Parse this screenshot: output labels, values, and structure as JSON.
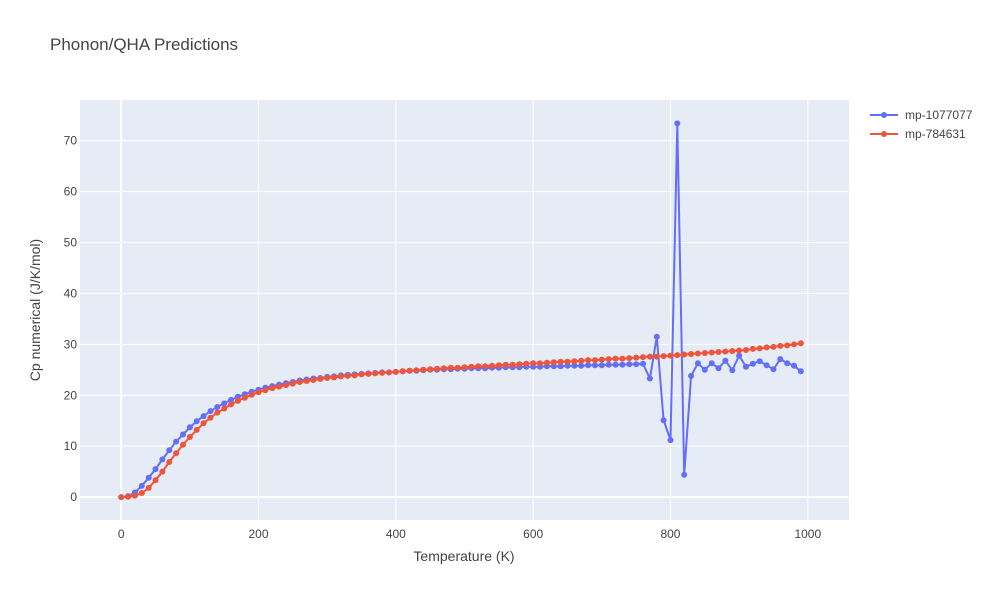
{
  "chart_data": {
    "type": "line",
    "title": "Phonon/QHA Predictions",
    "xlabel": "Temperature (K)",
    "ylabel": "Cp numerical (J/K/mol)",
    "xlim": [
      -60,
      1060
    ],
    "ylim": [
      -4.5,
      78
    ],
    "x_ticks": [
      0,
      200,
      400,
      600,
      800,
      1000
    ],
    "y_ticks": [
      0,
      10,
      20,
      30,
      40,
      50,
      60,
      70
    ],
    "grid": true,
    "legend_position": "top-right",
    "x": [
      0,
      10,
      20,
      30,
      40,
      50,
      60,
      70,
      80,
      90,
      100,
      110,
      120,
      130,
      140,
      150,
      160,
      170,
      180,
      190,
      200,
      210,
      220,
      230,
      240,
      250,
      260,
      270,
      280,
      290,
      300,
      310,
      320,
      330,
      340,
      350,
      360,
      370,
      380,
      390,
      400,
      410,
      420,
      430,
      440,
      450,
      460,
      470,
      480,
      490,
      500,
      510,
      520,
      530,
      540,
      550,
      560,
      570,
      580,
      590,
      600,
      610,
      620,
      630,
      640,
      650,
      660,
      670,
      680,
      690,
      700,
      710,
      720,
      730,
      740,
      750,
      760,
      770,
      780,
      790,
      800,
      810,
      820,
      830,
      840,
      850,
      860,
      870,
      880,
      890,
      900,
      910,
      920,
      930,
      940,
      950,
      960,
      970,
      980,
      990
    ],
    "series": [
      {
        "name": "mp-1077077",
        "color": "#636efa",
        "values": [
          0.0,
          0.2,
          0.9,
          2.2,
          3.8,
          5.5,
          7.4,
          9.2,
          10.9,
          12.3,
          13.7,
          14.9,
          15.9,
          16.9,
          17.7,
          18.4,
          19.1,
          19.7,
          20.2,
          20.7,
          21.1,
          21.5,
          21.8,
          22.1,
          22.4,
          22.6,
          22.9,
          23.1,
          23.3,
          23.4,
          23.6,
          23.7,
          23.9,
          24.0,
          24.1,
          24.2,
          24.3,
          24.4,
          24.5,
          24.5,
          24.6,
          24.7,
          24.8,
          24.8,
          24.9,
          25.0,
          25.0,
          25.1,
          25.1,
          25.2,
          25.2,
          25.3,
          25.3,
          25.3,
          25.4,
          25.4,
          25.5,
          25.5,
          25.5,
          25.6,
          25.6,
          25.6,
          25.7,
          25.7,
          25.7,
          25.8,
          25.8,
          25.8,
          25.9,
          25.9,
          25.9,
          26.0,
          26.0,
          26.0,
          26.1,
          26.1,
          26.2,
          23.3,
          31.5,
          15.1,
          11.2,
          73.4,
          4.4,
          23.8,
          26.3,
          25.0,
          26.3,
          25.3,
          26.8,
          24.9,
          27.8,
          25.6,
          26.2,
          26.7,
          25.9,
          25.1,
          27.1,
          26.3,
          25.8,
          24.7
        ]
      },
      {
        "name": "mp-784631",
        "color": "#ef553b",
        "values": [
          0.0,
          0.05,
          0.3,
          0.8,
          1.8,
          3.3,
          5.0,
          6.9,
          8.6,
          10.3,
          11.8,
          13.2,
          14.5,
          15.6,
          16.6,
          17.4,
          18.2,
          18.9,
          19.5,
          20.1,
          20.6,
          21.0,
          21.4,
          21.7,
          22.0,
          22.3,
          22.6,
          22.8,
          23.0,
          23.2,
          23.4,
          23.5,
          23.7,
          23.8,
          23.9,
          24.1,
          24.2,
          24.3,
          24.4,
          24.5,
          24.6,
          24.7,
          24.8,
          24.9,
          25.0,
          25.1,
          25.2,
          25.3,
          25.4,
          25.4,
          25.5,
          25.6,
          25.7,
          25.7,
          25.8,
          25.9,
          26.0,
          26.0,
          26.1,
          26.2,
          26.3,
          26.3,
          26.4,
          26.5,
          26.6,
          26.6,
          26.7,
          26.8,
          26.9,
          26.9,
          27.0,
          27.1,
          27.2,
          27.2,
          27.3,
          27.4,
          27.5,
          27.6,
          27.6,
          27.7,
          27.8,
          27.9,
          28.0,
          28.1,
          28.2,
          28.3,
          28.4,
          28.5,
          28.6,
          28.7,
          28.8,
          28.9,
          29.1,
          29.2,
          29.4,
          29.5,
          29.7,
          29.8,
          30.0,
          30.2
        ]
      }
    ]
  }
}
